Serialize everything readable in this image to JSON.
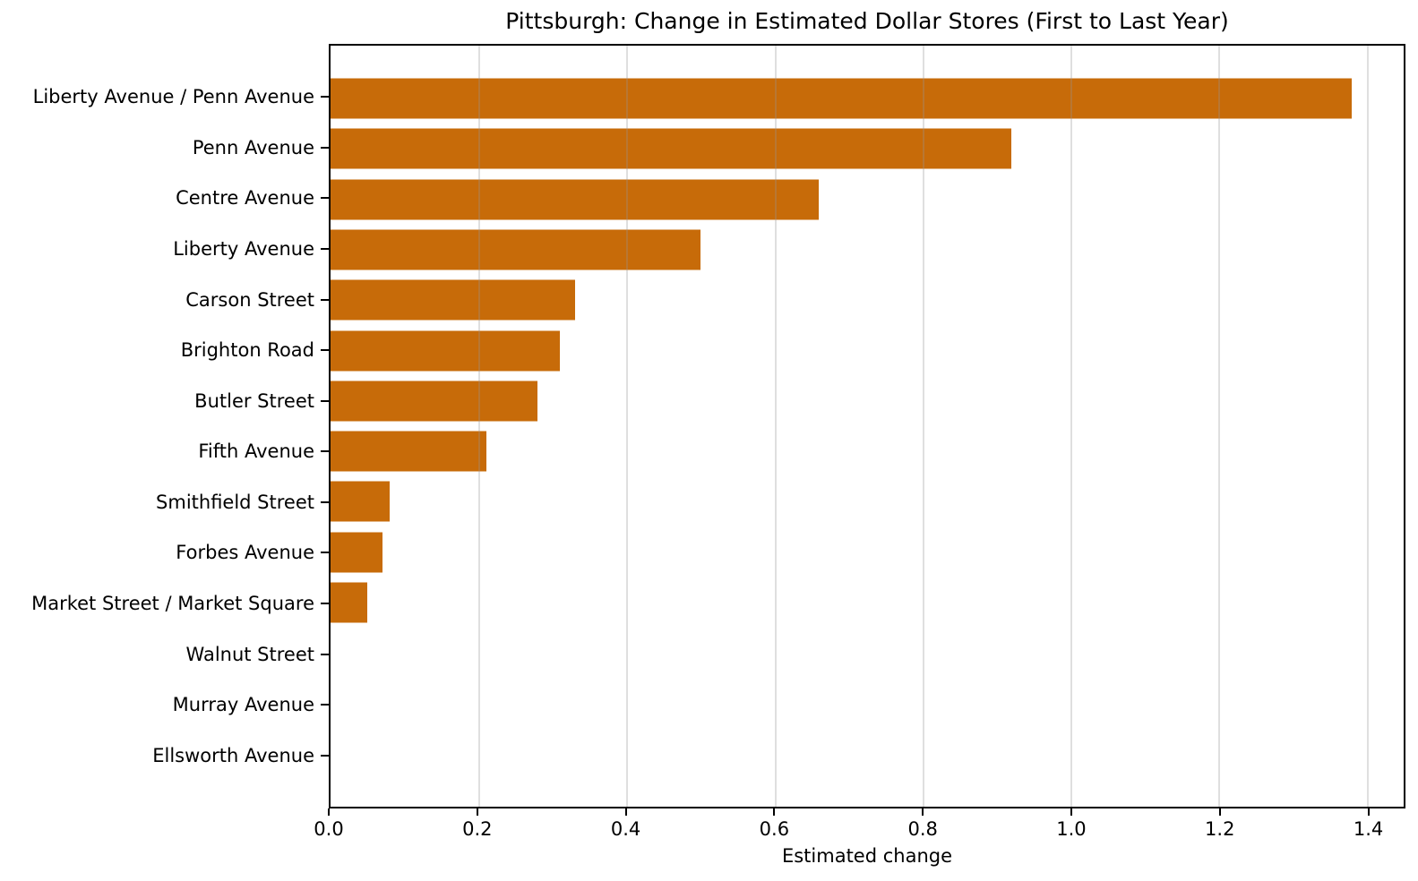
{
  "chart_data": {
    "type": "bar",
    "orientation": "horizontal",
    "title": "Pittsburgh: Change in Estimated Dollar Stores (First to Last Year)",
    "xlabel": "Estimated change",
    "ylabel": "",
    "categories": [
      "Liberty Avenue / Penn Avenue",
      "Penn Avenue",
      "Centre Avenue",
      "Liberty Avenue",
      "Carson Street",
      "Brighton Road",
      "Butler Street",
      "Fifth Avenue",
      "Smithfield Street",
      "Forbes Avenue",
      "Market Street / Market Square",
      "Walnut Street",
      "Murray Avenue",
      "Ellsworth Avenue"
    ],
    "values": [
      1.38,
      0.92,
      0.66,
      0.5,
      0.33,
      0.31,
      0.28,
      0.21,
      0.08,
      0.07,
      0.05,
      0.0,
      0.0,
      0.0
    ],
    "bar_color": "#C76B09",
    "xlim": [
      0,
      1.45
    ],
    "xticks": [
      0.0,
      0.2,
      0.4,
      0.6,
      0.8,
      1.0,
      1.2,
      1.4
    ],
    "xtick_labels": [
      "0.0",
      "0.2",
      "0.4",
      "0.6",
      "0.8",
      "1.0",
      "1.2",
      "1.4"
    ],
    "grid": true,
    "grid_axis": "x",
    "legend": null
  }
}
